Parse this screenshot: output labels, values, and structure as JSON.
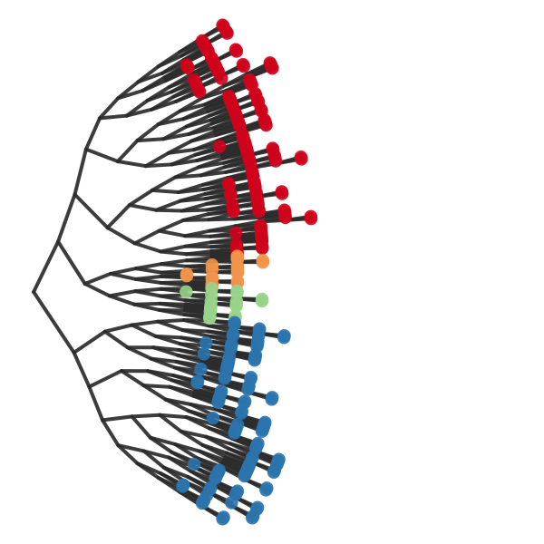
{
  "colors": {
    "edge": "#2b2b2b",
    "clade_red": "#d0021b",
    "clade_orange": "#f2954b",
    "clade_green": "#98d48a",
    "clade_blue": "#2b74ad"
  },
  "tree": {
    "type": "radial-dendrogram",
    "clades": [
      {
        "name": "red",
        "color_key": "clade_red",
        "approx_leaves": 130
      },
      {
        "name": "orange",
        "color_key": "clade_orange",
        "approx_leaves": 20
      },
      {
        "name": "green",
        "color_key": "clade_green",
        "approx_leaves": 20
      },
      {
        "name": "blue",
        "color_key": "clade_blue",
        "approx_leaves": 110
      }
    ]
  }
}
